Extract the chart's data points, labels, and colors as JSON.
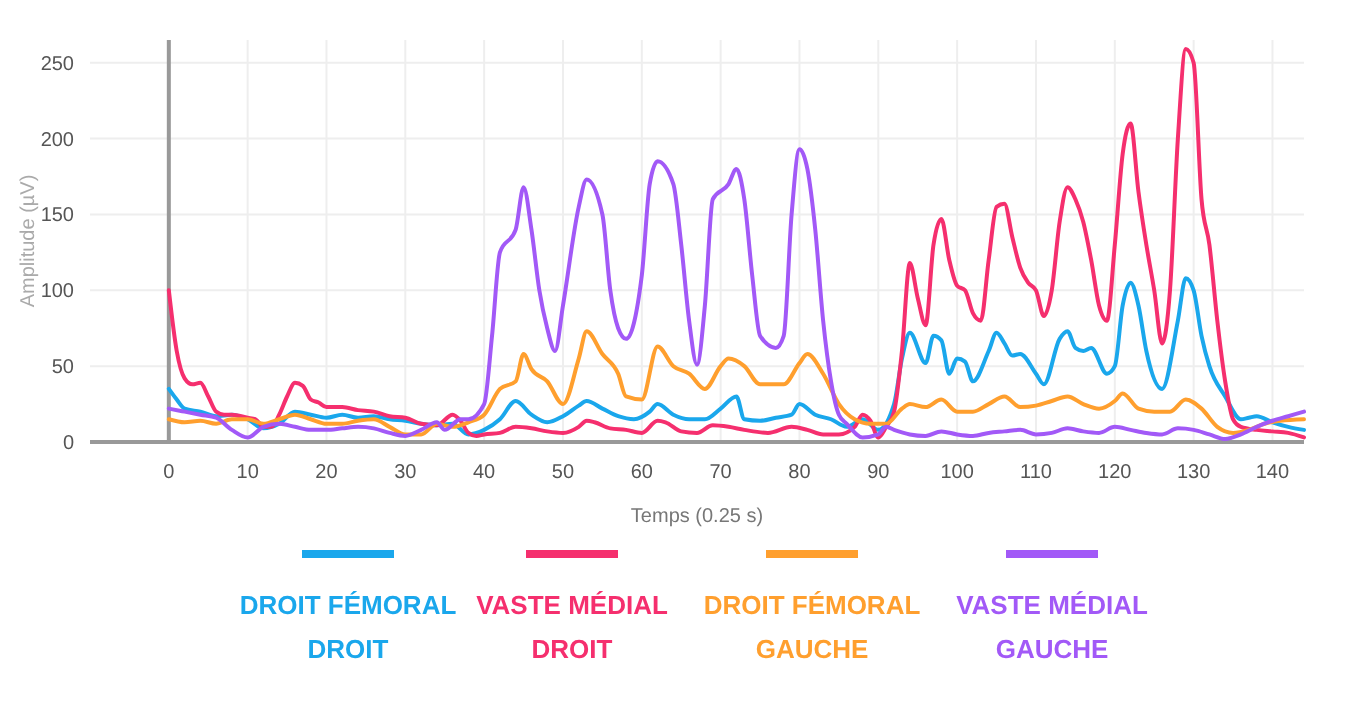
{
  "chart_data": {
    "type": "line",
    "xlabel": "Temps (0.25 s)",
    "ylabel": "Amplitude (µV)",
    "xlim": [
      -10,
      144
    ],
    "ylim": [
      0,
      265
    ],
    "xticks": [
      0,
      10,
      20,
      30,
      40,
      50,
      60,
      70,
      80,
      90,
      100,
      110,
      120,
      130,
      140
    ],
    "yticks": [
      0,
      50,
      100,
      150,
      200,
      250
    ],
    "grid": true,
    "legend": "bottom",
    "series": [
      {
        "name": "DROIT FÉMORAL DROIT",
        "color": "#1aa7ec",
        "x": [
          0,
          1,
          2,
          4,
          6,
          8,
          10,
          12,
          14,
          16,
          18,
          20,
          22,
          24,
          26,
          28,
          30,
          32,
          34,
          36,
          38,
          40,
          42,
          44,
          46,
          48,
          50,
          52,
          53,
          55,
          57,
          59,
          61,
          62,
          64,
          66,
          68,
          70,
          72,
          73,
          75,
          77,
          79,
          80,
          82,
          84,
          86,
          88,
          90,
          92,
          93,
          94,
          96,
          97,
          98,
          99,
          100,
          101,
          102,
          104,
          105,
          106,
          107,
          108,
          110,
          111,
          113,
          114,
          115,
          116,
          117,
          119,
          120,
          121,
          122,
          123,
          124,
          126,
          128,
          129,
          130,
          131,
          132,
          134,
          136,
          137,
          138,
          140,
          142,
          144
        ],
        "values": [
          35,
          28,
          22,
          20,
          17,
          18,
          15,
          9,
          12,
          20,
          18,
          16,
          18,
          16,
          17,
          15,
          14,
          12,
          11,
          12,
          5,
          8,
          15,
          27,
          18,
          13,
          17,
          24,
          27,
          22,
          17,
          15,
          20,
          25,
          18,
          15,
          15,
          22,
          30,
          15,
          14,
          16,
          18,
          25,
          18,
          15,
          10,
          15,
          8,
          25,
          55,
          72,
          52,
          70,
          67,
          45,
          55,
          53,
          40,
          60,
          72,
          65,
          57,
          58,
          45,
          38,
          68,
          73,
          62,
          60,
          62,
          45,
          50,
          90,
          105,
          90,
          60,
          35,
          80,
          108,
          100,
          70,
          50,
          30,
          15,
          16,
          17,
          13,
          10,
          8
        ]
      },
      {
        "name": "VASTE MÉDIAL DROIT",
        "color": "#f52f6e",
        "x": [
          0,
          1,
          2,
          3,
          4,
          5,
          6,
          7,
          8,
          10,
          11,
          12,
          13,
          14,
          15,
          16,
          17,
          18,
          19,
          20,
          22,
          24,
          26,
          28,
          30,
          32,
          34,
          36,
          37,
          38,
          39,
          40,
          42,
          44,
          46,
          48,
          50,
          52,
          53,
          54,
          56,
          58,
          60,
          62,
          63,
          65,
          67,
          69,
          71,
          73,
          76,
          79,
          81,
          83,
          85,
          87,
          88,
          89,
          90,
          91,
          92,
          93,
          94,
          95,
          96,
          97,
          98,
          99,
          100,
          101,
          102,
          103,
          104,
          105,
          106,
          107,
          108,
          109,
          110,
          111,
          112,
          113,
          114,
          115,
          116,
          117,
          118,
          119,
          120,
          121,
          122,
          123,
          124,
          125,
          126,
          127,
          128,
          129,
          130,
          131,
          132,
          133,
          134,
          135,
          136,
          138,
          140,
          142,
          144
        ],
        "values": [
          100,
          60,
          42,
          38,
          39,
          30,
          20,
          18,
          18,
          16,
          15,
          10,
          10,
          18,
          30,
          39,
          37,
          28,
          26,
          23,
          23,
          21,
          20,
          17,
          16,
          12,
          11,
          18,
          14,
          6,
          4,
          5,
          6,
          10,
          9,
          7,
          6,
          10,
          14,
          13,
          9,
          8,
          6,
          14,
          13,
          7,
          6,
          11,
          10,
          8,
          6,
          10,
          8,
          5,
          5,
          10,
          18,
          14,
          3,
          10,
          20,
          60,
          118,
          95,
          77,
          130,
          147,
          120,
          103,
          100,
          85,
          80,
          120,
          155,
          157,
          135,
          115,
          105,
          100,
          83,
          100,
          145,
          168,
          160,
          145,
          120,
          90,
          80,
          130,
          190,
          210,
          165,
          130,
          100,
          65,
          100,
          200,
          259,
          250,
          160,
          130,
          80,
          40,
          15,
          10,
          8,
          7,
          6,
          3
        ]
      },
      {
        "name": "DROIT FÉMORAL GAUCHE",
        "color": "#ff9f2e",
        "x": [
          0,
          2,
          4,
          6,
          8,
          10,
          12,
          14,
          16,
          18,
          20,
          22,
          24,
          26,
          28,
          30,
          32,
          34,
          36,
          38,
          40,
          42,
          44,
          45,
          46,
          48,
          50,
          52,
          53,
          55,
          57,
          58,
          60,
          62,
          64,
          66,
          68,
          70,
          71,
          73,
          75,
          78,
          80,
          81,
          83,
          85,
          87,
          89,
          91,
          93,
          94,
          96,
          98,
          100,
          102,
          104,
          106,
          108,
          110,
          112,
          114,
          116,
          118,
          120,
          121,
          123,
          125,
          127,
          129,
          131,
          133,
          135,
          137,
          139,
          141,
          144
        ],
        "values": [
          15,
          13,
          14,
          12,
          15,
          15,
          12,
          15,
          18,
          15,
          12,
          12,
          14,
          15,
          10,
          5,
          5,
          12,
          10,
          13,
          18,
          35,
          40,
          58,
          48,
          40,
          25,
          55,
          73,
          58,
          45,
          30,
          28,
          63,
          50,
          45,
          35,
          50,
          55,
          50,
          38,
          38,
          52,
          58,
          45,
          25,
          15,
          12,
          12,
          22,
          25,
          23,
          28,
          20,
          20,
          25,
          30,
          23,
          24,
          27,
          30,
          25,
          22,
          27,
          32,
          22,
          20,
          20,
          28,
          22,
          10,
          6,
          8,
          12,
          14,
          15
        ]
      },
      {
        "name": "VASTE MÉDIAL GAUCHE",
        "color": "#a259f7",
        "x": [
          0,
          2,
          4,
          6,
          8,
          10,
          12,
          14,
          16,
          18,
          20,
          22,
          24,
          26,
          28,
          30,
          32,
          34,
          35,
          37,
          38,
          40,
          41,
          42,
          44,
          45,
          46,
          47,
          48,
          49,
          50,
          52,
          53,
          55,
          56,
          57,
          58,
          60,
          61,
          62,
          64,
          65,
          66,
          67,
          68,
          69,
          71,
          72,
          73,
          74,
          75,
          77,
          78,
          79,
          80,
          81,
          82,
          83,
          84,
          85,
          86,
          88,
          90,
          91,
          92,
          94,
          96,
          98,
          100,
          102,
          104,
          106,
          108,
          110,
          112,
          114,
          116,
          118,
          120,
          122,
          124,
          126,
          128,
          130,
          132,
          134,
          136,
          138,
          140,
          142,
          144
        ],
        "values": [
          22,
          20,
          18,
          16,
          8,
          3,
          10,
          12,
          10,
          8,
          8,
          9,
          10,
          9,
          6,
          4,
          8,
          13,
          8,
          15,
          15,
          25,
          70,
          125,
          140,
          168,
          140,
          100,
          75,
          60,
          90,
          155,
          173,
          150,
          100,
          75,
          68,
          110,
          170,
          185,
          170,
          130,
          80,
          51,
          90,
          160,
          170,
          180,
          160,
          110,
          70,
          62,
          70,
          150,
          193,
          180,
          140,
          80,
          40,
          18,
          12,
          3,
          5,
          10,
          8,
          5,
          4,
          7,
          5,
          4,
          6,
          7,
          8,
          5,
          6,
          9,
          7,
          6,
          10,
          8,
          6,
          5,
          9,
          8,
          5,
          2,
          5,
          10,
          14,
          17,
          20
        ]
      }
    ]
  }
}
